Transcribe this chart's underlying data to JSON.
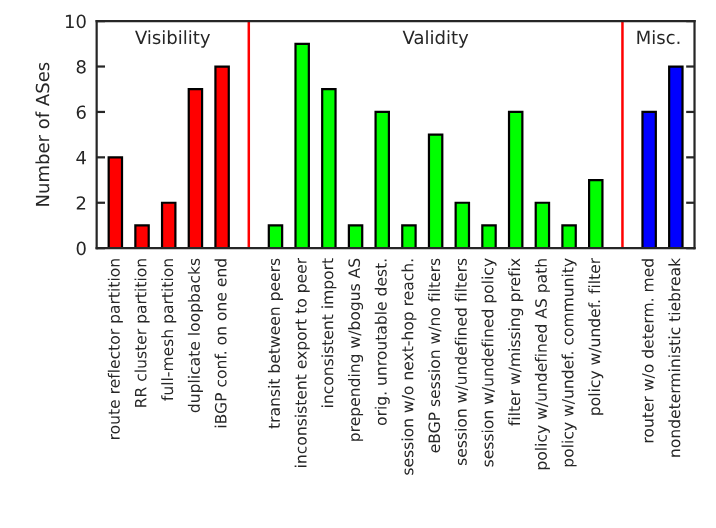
{
  "chart_data": {
    "type": "bar",
    "ylabel": "Number of ASes",
    "categories": [
      "route reflector partition",
      "RR cluster partition",
      "full-mesh partition",
      "duplicate loopbacks",
      "iBGP conf. on one end",
      null,
      "transit between peers",
      "inconsistent export to peer",
      "inconsistent import",
      "prepending w/bogus AS",
      "orig. unroutable dest.",
      "session w/o next-hop reach.",
      "eBGP session w/no filters",
      "session w/undefined filters",
      "session w/undefined policy",
      "filter w/missing prefix",
      "policy w/undefined AS path",
      "policy w/undef. community",
      "policy w/undef. filter",
      null,
      "router w/o determ. med",
      "nondeterministic tiebreak"
    ],
    "values": [
      4,
      1,
      2,
      7,
      8,
      null,
      1,
      9,
      7,
      1,
      6,
      1,
      5,
      2,
      1,
      6,
      2,
      1,
      3,
      null,
      6,
      8
    ],
    "colors": [
      "#ff0000",
      "#ff0000",
      "#ff0000",
      "#ff0000",
      "#ff0000",
      "#ffffff",
      "#00ff00",
      "#00ff00",
      "#00ff00",
      "#00ff00",
      "#00ff00",
      "#00ff00",
      "#00ff00",
      "#00ff00",
      "#00ff00",
      "#00ff00",
      "#00ff00",
      "#00ff00",
      "#00ff00",
      "#ffffff",
      "#0000ff",
      "#0000ff"
    ],
    "ylim": [
      0,
      10
    ],
    "yticks": [
      0,
      2,
      4,
      6,
      8,
      10
    ],
    "annotations": [
      "Visibility",
      "Validity",
      "Misc."
    ]
  }
}
